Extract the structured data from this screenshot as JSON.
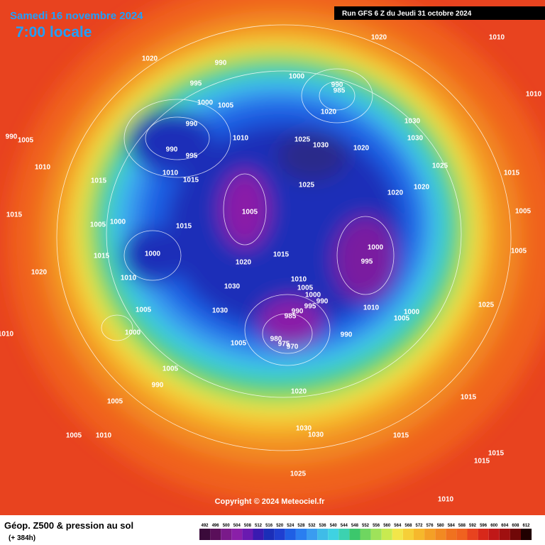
{
  "header": {
    "date": "Samedi 16 novembre 2024",
    "time": "7:00 locale",
    "run": "Run GFS 6 Z du Jeudi 31 octobre 2024"
  },
  "copyright": "Copyright © 2024 Meteociel.fr",
  "legend": {
    "title": "Géop. Z500 & pression au sol",
    "lead": "(+ 384h)",
    "scale": [
      492,
      496,
      500,
      504,
      508,
      512,
      516,
      520,
      524,
      528,
      532,
      536,
      540,
      544,
      548,
      552,
      556,
      560,
      564,
      568,
      572,
      576,
      580,
      584,
      588,
      592,
      596,
      600,
      604,
      608,
      612
    ]
  },
  "isobar_labels": [
    1020,
    990,
    1020,
    1010,
    1010,
    995,
    1000,
    990,
    985,
    1000,
    1005,
    1020,
    990,
    1030,
    990,
    1005,
    1010,
    1025,
    1030,
    1020,
    1030,
    990,
    995,
    1010,
    1025,
    1010,
    1015,
    1025,
    1015,
    1020,
    1020,
    1015,
    1015,
    1005,
    1005,
    1000,
    1005,
    1015,
    1000,
    1005,
    1000,
    1015,
    1015,
    1020,
    995,
    1020,
    1010,
    1010,
    1005,
    1030,
    1000,
    990,
    995,
    1025,
    1005,
    1030,
    1010,
    1000,
    1005,
    985,
    990,
    1010,
    1000,
    990,
    980,
    975,
    970,
    1005,
    1005,
    990,
    1020,
    1005,
    1015,
    1005,
    1010,
    1030,
    1030,
    1015,
    1015,
    1015,
    1025,
    1010
  ]
}
